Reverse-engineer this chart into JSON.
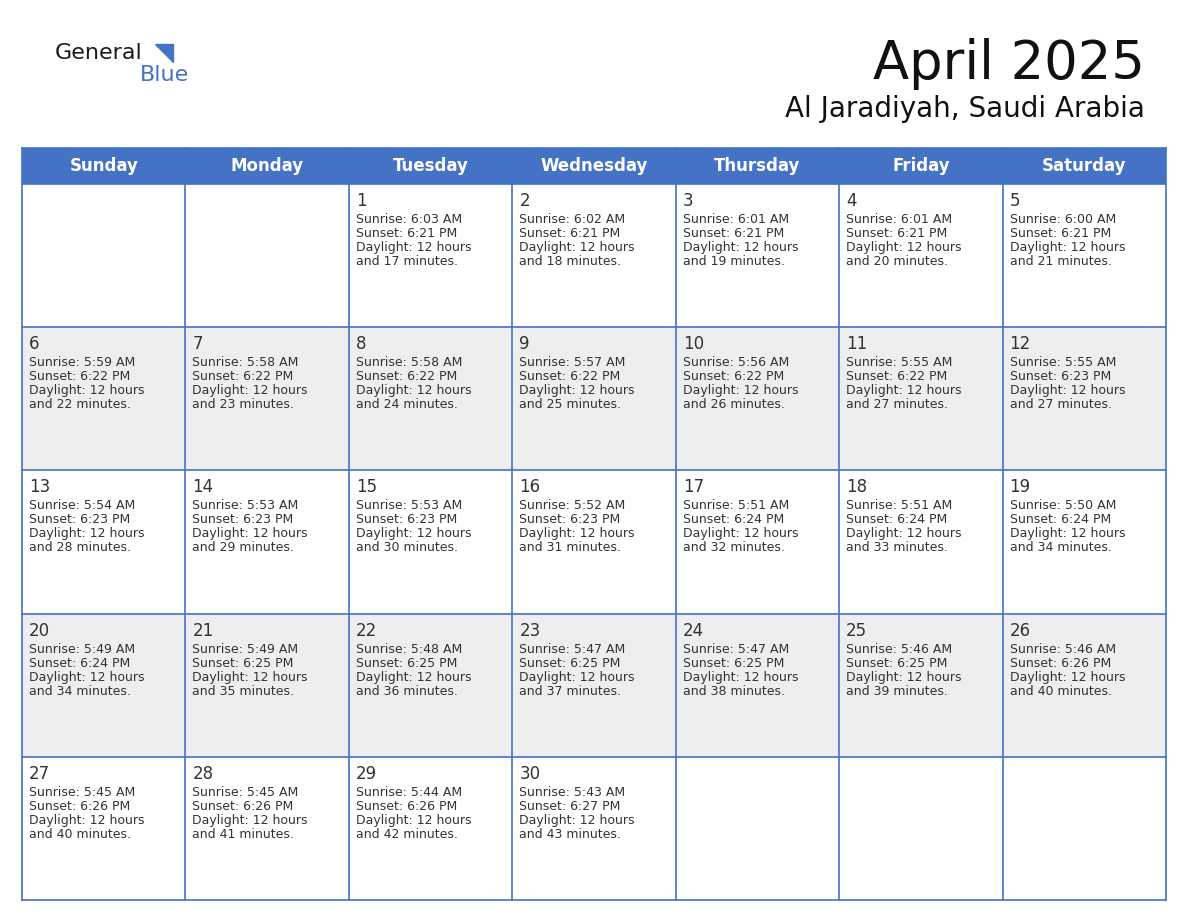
{
  "title": "April 2025",
  "subtitle": "Al Jaradiyah, Saudi Arabia",
  "days_of_week": [
    "Sunday",
    "Monday",
    "Tuesday",
    "Wednesday",
    "Thursday",
    "Friday",
    "Saturday"
  ],
  "header_bg": "#4472C4",
  "header_text": "#FFFFFF",
  "row_bg_odd": "#FFFFFF",
  "row_bg_even": "#EEEEEE",
  "grid_line_color": "#4472C4",
  "text_color": "#333333",
  "calendar_data": [
    [
      null,
      null,
      {
        "day": 1,
        "sunrise": "6:03 AM",
        "sunset": "6:21 PM",
        "daylight_l1": "12 hours",
        "daylight_l2": "and 17 minutes."
      },
      {
        "day": 2,
        "sunrise": "6:02 AM",
        "sunset": "6:21 PM",
        "daylight_l1": "12 hours",
        "daylight_l2": "and 18 minutes."
      },
      {
        "day": 3,
        "sunrise": "6:01 AM",
        "sunset": "6:21 PM",
        "daylight_l1": "12 hours",
        "daylight_l2": "and 19 minutes."
      },
      {
        "day": 4,
        "sunrise": "6:01 AM",
        "sunset": "6:21 PM",
        "daylight_l1": "12 hours",
        "daylight_l2": "and 20 minutes."
      },
      {
        "day": 5,
        "sunrise": "6:00 AM",
        "sunset": "6:21 PM",
        "daylight_l1": "12 hours",
        "daylight_l2": "and 21 minutes."
      }
    ],
    [
      {
        "day": 6,
        "sunrise": "5:59 AM",
        "sunset": "6:22 PM",
        "daylight_l1": "12 hours",
        "daylight_l2": "and 22 minutes."
      },
      {
        "day": 7,
        "sunrise": "5:58 AM",
        "sunset": "6:22 PM",
        "daylight_l1": "12 hours",
        "daylight_l2": "and 23 minutes."
      },
      {
        "day": 8,
        "sunrise": "5:58 AM",
        "sunset": "6:22 PM",
        "daylight_l1": "12 hours",
        "daylight_l2": "and 24 minutes."
      },
      {
        "day": 9,
        "sunrise": "5:57 AM",
        "sunset": "6:22 PM",
        "daylight_l1": "12 hours",
        "daylight_l2": "and 25 minutes."
      },
      {
        "day": 10,
        "sunrise": "5:56 AM",
        "sunset": "6:22 PM",
        "daylight_l1": "12 hours",
        "daylight_l2": "and 26 minutes."
      },
      {
        "day": 11,
        "sunrise": "5:55 AM",
        "sunset": "6:22 PM",
        "daylight_l1": "12 hours",
        "daylight_l2": "and 27 minutes."
      },
      {
        "day": 12,
        "sunrise": "5:55 AM",
        "sunset": "6:23 PM",
        "daylight_l1": "12 hours",
        "daylight_l2": "and 27 minutes."
      }
    ],
    [
      {
        "day": 13,
        "sunrise": "5:54 AM",
        "sunset": "6:23 PM",
        "daylight_l1": "12 hours",
        "daylight_l2": "and 28 minutes."
      },
      {
        "day": 14,
        "sunrise": "5:53 AM",
        "sunset": "6:23 PM",
        "daylight_l1": "12 hours",
        "daylight_l2": "and 29 minutes."
      },
      {
        "day": 15,
        "sunrise": "5:53 AM",
        "sunset": "6:23 PM",
        "daylight_l1": "12 hours",
        "daylight_l2": "and 30 minutes."
      },
      {
        "day": 16,
        "sunrise": "5:52 AM",
        "sunset": "6:23 PM",
        "daylight_l1": "12 hours",
        "daylight_l2": "and 31 minutes."
      },
      {
        "day": 17,
        "sunrise": "5:51 AM",
        "sunset": "6:24 PM",
        "daylight_l1": "12 hours",
        "daylight_l2": "and 32 minutes."
      },
      {
        "day": 18,
        "sunrise": "5:51 AM",
        "sunset": "6:24 PM",
        "daylight_l1": "12 hours",
        "daylight_l2": "and 33 minutes."
      },
      {
        "day": 19,
        "sunrise": "5:50 AM",
        "sunset": "6:24 PM",
        "daylight_l1": "12 hours",
        "daylight_l2": "and 34 minutes."
      }
    ],
    [
      {
        "day": 20,
        "sunrise": "5:49 AM",
        "sunset": "6:24 PM",
        "daylight_l1": "12 hours",
        "daylight_l2": "and 34 minutes."
      },
      {
        "day": 21,
        "sunrise": "5:49 AM",
        "sunset": "6:25 PM",
        "daylight_l1": "12 hours",
        "daylight_l2": "and 35 minutes."
      },
      {
        "day": 22,
        "sunrise": "5:48 AM",
        "sunset": "6:25 PM",
        "daylight_l1": "12 hours",
        "daylight_l2": "and 36 minutes."
      },
      {
        "day": 23,
        "sunrise": "5:47 AM",
        "sunset": "6:25 PM",
        "daylight_l1": "12 hours",
        "daylight_l2": "and 37 minutes."
      },
      {
        "day": 24,
        "sunrise": "5:47 AM",
        "sunset": "6:25 PM",
        "daylight_l1": "12 hours",
        "daylight_l2": "and 38 minutes."
      },
      {
        "day": 25,
        "sunrise": "5:46 AM",
        "sunset": "6:25 PM",
        "daylight_l1": "12 hours",
        "daylight_l2": "and 39 minutes."
      },
      {
        "day": 26,
        "sunrise": "5:46 AM",
        "sunset": "6:26 PM",
        "daylight_l1": "12 hours",
        "daylight_l2": "and 40 minutes."
      }
    ],
    [
      {
        "day": 27,
        "sunrise": "5:45 AM",
        "sunset": "6:26 PM",
        "daylight_l1": "12 hours",
        "daylight_l2": "and 40 minutes."
      },
      {
        "day": 28,
        "sunrise": "5:45 AM",
        "sunset": "6:26 PM",
        "daylight_l1": "12 hours",
        "daylight_l2": "and 41 minutes."
      },
      {
        "day": 29,
        "sunrise": "5:44 AM",
        "sunset": "6:26 PM",
        "daylight_l1": "12 hours",
        "daylight_l2": "and 42 minutes."
      },
      {
        "day": 30,
        "sunrise": "5:43 AM",
        "sunset": "6:27 PM",
        "daylight_l1": "12 hours",
        "daylight_l2": "and 43 minutes."
      },
      null,
      null,
      null
    ]
  ],
  "logo_color_general": "#1a1a1a",
  "logo_color_blue": "#4472C4",
  "title_fontsize": 38,
  "subtitle_fontsize": 20,
  "header_fontsize": 12,
  "day_num_fontsize": 12,
  "cell_text_fontsize": 9
}
